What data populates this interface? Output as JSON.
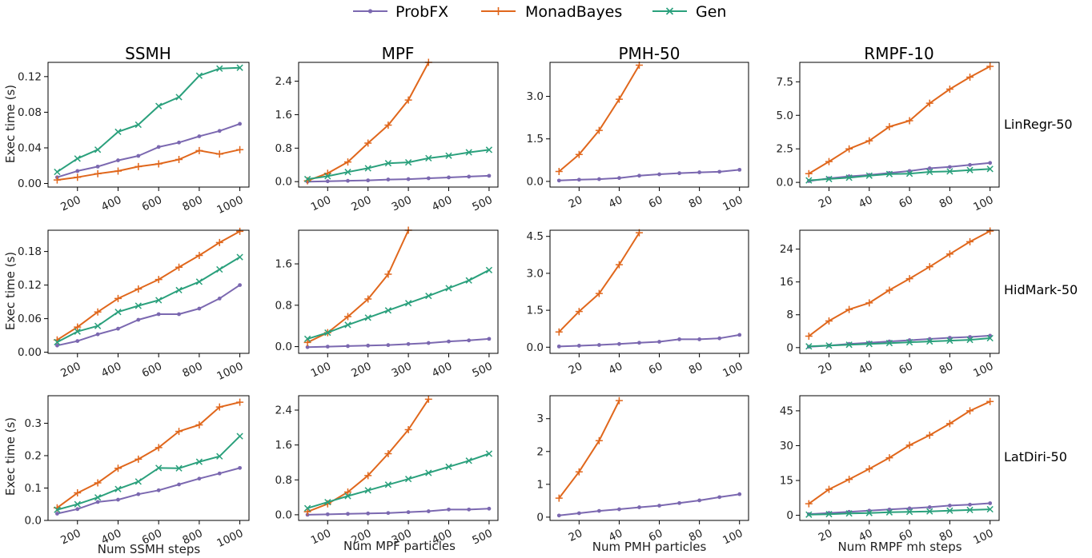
{
  "legend": [
    {
      "name": "ProbFX",
      "color": "#7b68b0",
      "marker": "dot"
    },
    {
      "name": "MonadBayes",
      "color": "#e0671c",
      "marker": "plus"
    },
    {
      "name": "Gen",
      "color": "#2aa07c",
      "marker": "x"
    }
  ],
  "col_titles": [
    "SSMH",
    "MPF",
    "PMH-50",
    "RMPF-10"
  ],
  "row_titles": [
    "LinRegr-50",
    "HidMark-50",
    "LatDiri-50"
  ],
  "xlabels": [
    "Num SSMH steps",
    "Num MPF particles",
    "Num PMH particles",
    "Num RMPF mh steps"
  ],
  "ylabel": "Exec time (s)",
  "chart_data": [
    {
      "type": "line",
      "row": 0,
      "col": 0,
      "x": [
        100,
        200,
        300,
        400,
        500,
        600,
        700,
        800,
        900,
        1000
      ],
      "xticks": [
        200,
        400,
        600,
        800,
        1000
      ],
      "xticklabels": [
        "200",
        "400",
        "600",
        "800",
        "1000"
      ],
      "xlim": [
        55,
        1045
      ],
      "yticks": [
        0,
        0.04,
        0.08,
        0.12
      ],
      "yticklabels": [
        "0.00",
        "0.04",
        "0.08",
        "0.12"
      ],
      "ylim": [
        -0.004,
        0.136
      ],
      "series": [
        {
          "name": "ProbFX",
          "values": [
            0.007,
            0.014,
            0.019,
            0.026,
            0.031,
            0.041,
            0.046,
            0.053,
            0.059,
            0.067
          ]
        },
        {
          "name": "MonadBayes",
          "values": [
            0.004,
            0.007,
            0.011,
            0.014,
            0.019,
            0.022,
            0.027,
            0.037,
            0.033,
            0.038
          ]
        },
        {
          "name": "Gen",
          "values": [
            0.013,
            0.028,
            0.038,
            0.058,
            0.066,
            0.087,
            0.097,
            0.121,
            0.129,
            0.13
          ]
        }
      ]
    },
    {
      "type": "line",
      "row": 0,
      "col": 1,
      "x": [
        50,
        100,
        150,
        200,
        250,
        300,
        350,
        400,
        450,
        500
      ],
      "xticks": [
        100,
        200,
        300,
        400,
        500
      ],
      "xticklabels": [
        "100",
        "200",
        "300",
        "400",
        "500"
      ],
      "xlim": [
        28,
        522
      ],
      "yticks": [
        0,
        0.8,
        1.6,
        2.4
      ],
      "yticklabels": [
        "0.0",
        "0.8",
        "1.6",
        "2.4"
      ],
      "ylim": [
        -0.13,
        2.85
      ],
      "series": [
        {
          "name": "ProbFX",
          "values": [
            0.0,
            0.01,
            0.02,
            0.03,
            0.05,
            0.06,
            0.08,
            0.1,
            0.12,
            0.14
          ]
        },
        {
          "name": "MonadBayes",
          "values": [
            0.02,
            0.2,
            0.47,
            0.92,
            1.35,
            1.95,
            2.85,
            null,
            null,
            null
          ]
        },
        {
          "name": "Gen",
          "values": [
            0.06,
            0.13,
            0.23,
            0.32,
            0.44,
            0.46,
            0.56,
            0.62,
            0.7,
            0.76
          ]
        }
      ]
    },
    {
      "type": "line",
      "row": 0,
      "col": 2,
      "x": [
        10,
        20,
        30,
        40,
        50,
        60,
        70,
        80,
        90,
        100
      ],
      "xticks": [
        20,
        40,
        60,
        80,
        100
      ],
      "xticklabels": [
        "20",
        "40",
        "60",
        "80",
        "100"
      ],
      "xlim": [
        5.5,
        104.5
      ],
      "yticks": [
        0,
        1.5,
        3.0
      ],
      "yticklabels": [
        "0.0",
        "1.5",
        "3.0"
      ],
      "ylim": [
        -0.2,
        4.2
      ],
      "series": [
        {
          "name": "ProbFX",
          "values": [
            0.03,
            0.06,
            0.08,
            0.12,
            0.2,
            0.25,
            0.29,
            0.32,
            0.34,
            0.41
          ]
        },
        {
          "name": "MonadBayes",
          "values": [
            0.35,
            0.95,
            1.8,
            2.9,
            4.1,
            null,
            null,
            null,
            null,
            null
          ]
        }
      ]
    },
    {
      "type": "line",
      "row": 0,
      "col": 3,
      "x": [
        10,
        20,
        30,
        40,
        50,
        60,
        70,
        80,
        90,
        100
      ],
      "xticks": [
        20,
        40,
        60,
        80,
        100
      ],
      "xticklabels": [
        "20",
        "40",
        "60",
        "80",
        "100"
      ],
      "xlim": [
        5.5,
        104.5
      ],
      "yticks": [
        0,
        2.5,
        5.0,
        7.5
      ],
      "yticklabels": [
        "0.0",
        "2.5",
        "5.0",
        "7.5"
      ],
      "ylim": [
        -0.35,
        8.95
      ],
      "series": [
        {
          "name": "ProbFX",
          "values": [
            0.1,
            0.3,
            0.45,
            0.55,
            0.7,
            0.85,
            1.05,
            1.15,
            1.3,
            1.45
          ]
        },
        {
          "name": "MonadBayes",
          "values": [
            0.65,
            1.55,
            2.5,
            3.1,
            4.15,
            4.6,
            5.9,
            6.95,
            7.85,
            8.65
          ]
        },
        {
          "name": "Gen",
          "values": [
            0.15,
            0.25,
            0.35,
            0.5,
            0.62,
            0.65,
            0.78,
            0.82,
            0.92,
            1.0
          ]
        }
      ]
    },
    {
      "type": "line",
      "row": 1,
      "col": 0,
      "x": [
        100,
        200,
        300,
        400,
        500,
        600,
        700,
        800,
        900,
        1000
      ],
      "xticks": [
        200,
        400,
        600,
        800,
        1000
      ],
      "xticklabels": [
        "200",
        "400",
        "600",
        "800",
        "1000"
      ],
      "xlim": [
        55,
        1045
      ],
      "yticks": [
        0,
        0.06,
        0.12,
        0.18
      ],
      "yticklabels": [
        "0.00",
        "0.06",
        "0.12",
        "0.18"
      ],
      "ylim": [
        -0.002,
        0.218
      ],
      "series": [
        {
          "name": "ProbFX",
          "values": [
            0.012,
            0.02,
            0.032,
            0.042,
            0.058,
            0.068,
            0.068,
            0.078,
            0.096,
            0.12
          ]
        },
        {
          "name": "MonadBayes",
          "values": [
            0.022,
            0.045,
            0.072,
            0.096,
            0.113,
            0.13,
            0.152,
            0.173,
            0.196,
            0.216
          ]
        },
        {
          "name": "Gen",
          "values": [
            0.018,
            0.037,
            0.047,
            0.072,
            0.083,
            0.093,
            0.111,
            0.126,
            0.148,
            0.17
          ]
        }
      ]
    },
    {
      "type": "line",
      "row": 1,
      "col": 1,
      "x": [
        50,
        100,
        150,
        200,
        250,
        300,
        350,
        400,
        450,
        500
      ],
      "xticks": [
        100,
        200,
        300,
        400,
        500
      ],
      "xticklabels": [
        "100",
        "200",
        "300",
        "400",
        "500"
      ],
      "xlim": [
        28,
        522
      ],
      "yticks": [
        0,
        0.8,
        1.6
      ],
      "yticklabels": [
        "0.0",
        "0.8",
        "1.6"
      ],
      "ylim": [
        -0.13,
        2.25
      ],
      "series": [
        {
          "name": "ProbFX",
          "values": [
            -0.01,
            0.0,
            0.01,
            0.02,
            0.03,
            0.05,
            0.07,
            0.1,
            0.12,
            0.15
          ]
        },
        {
          "name": "MonadBayes",
          "values": [
            0.08,
            0.27,
            0.58,
            0.92,
            1.4,
            2.25,
            null,
            null,
            null,
            null
          ]
        },
        {
          "name": "Gen",
          "values": [
            0.15,
            0.27,
            0.42,
            0.56,
            0.7,
            0.84,
            0.98,
            1.13,
            1.28,
            1.48
          ]
        }
      ]
    },
    {
      "type": "line",
      "row": 1,
      "col": 2,
      "x": [
        10,
        20,
        30,
        40,
        50,
        60,
        70,
        80,
        90,
        100
      ],
      "xticks": [
        20,
        40,
        60,
        80,
        100
      ],
      "xticklabels": [
        "20",
        "40",
        "60",
        "80",
        "100"
      ],
      "xlim": [
        5.5,
        104.5
      ],
      "yticks": [
        0,
        1.5,
        3.0,
        4.5
      ],
      "yticklabels": [
        "0.0",
        "1.5",
        "3.0",
        "4.5"
      ],
      "ylim": [
        -0.25,
        4.75
      ],
      "series": [
        {
          "name": "ProbFX",
          "values": [
            0.03,
            0.06,
            0.09,
            0.13,
            0.18,
            0.22,
            0.32,
            0.32,
            0.36,
            0.5
          ]
        },
        {
          "name": "MonadBayes",
          "values": [
            0.62,
            1.45,
            2.18,
            3.35,
            4.65,
            null,
            null,
            null,
            null,
            null
          ]
        }
      ]
    },
    {
      "type": "line",
      "row": 1,
      "col": 3,
      "x": [
        10,
        20,
        30,
        40,
        50,
        60,
        70,
        80,
        90,
        100
      ],
      "xticks": [
        20,
        40,
        60,
        80,
        100
      ],
      "xticklabels": [
        "20",
        "40",
        "60",
        "80",
        "100"
      ],
      "xlim": [
        5.5,
        104.5
      ],
      "yticks": [
        0,
        8,
        16,
        24
      ],
      "yticklabels": [
        "0",
        "8",
        "16",
        "24"
      ],
      "ylim": [
        -1.4,
        28.6
      ],
      "series": [
        {
          "name": "ProbFX",
          "values": [
            0.2,
            0.5,
            0.9,
            1.2,
            1.5,
            1.8,
            2.1,
            2.4,
            2.6,
            2.9
          ]
        },
        {
          "name": "MonadBayes",
          "values": [
            2.8,
            6.5,
            9.3,
            10.9,
            14.0,
            16.8,
            19.7,
            22.8,
            25.8,
            28.4
          ]
        },
        {
          "name": "Gen",
          "values": [
            0.3,
            0.5,
            0.7,
            0.9,
            1.1,
            1.3,
            1.5,
            1.7,
            1.9,
            2.3
          ]
        }
      ]
    },
    {
      "type": "line",
      "row": 2,
      "col": 0,
      "x": [
        100,
        200,
        300,
        400,
        500,
        600,
        700,
        800,
        900,
        1000
      ],
      "xticks": [
        200,
        400,
        600,
        800,
        1000
      ],
      "xticklabels": [
        "200",
        "400",
        "600",
        "800",
        "1000"
      ],
      "xlim": [
        55,
        1045
      ],
      "yticks": [
        0,
        0.1,
        0.2,
        0.3
      ],
      "yticklabels": [
        "0.0",
        "0.1",
        "0.2",
        "0.3"
      ],
      "ylim": [
        0.0,
        0.385
      ],
      "series": [
        {
          "name": "ProbFX",
          "values": [
            0.021,
            0.035,
            0.057,
            0.064,
            0.081,
            0.093,
            0.111,
            0.129,
            0.145,
            0.162
          ]
        },
        {
          "name": "MonadBayes",
          "values": [
            0.039,
            0.085,
            0.116,
            0.161,
            0.189,
            0.225,
            0.275,
            0.295,
            0.35,
            0.365
          ]
        },
        {
          "name": "Gen",
          "values": [
            0.033,
            0.05,
            0.071,
            0.097,
            0.12,
            0.162,
            0.161,
            0.181,
            0.198,
            0.26
          ]
        }
      ]
    },
    {
      "type": "line",
      "row": 2,
      "col": 1,
      "x": [
        50,
        100,
        150,
        200,
        250,
        300,
        350,
        400,
        450,
        500
      ],
      "xticks": [
        100,
        200,
        300,
        400,
        500
      ],
      "xticklabels": [
        "100",
        "200",
        "300",
        "400",
        "500"
      ],
      "xlim": [
        28,
        522
      ],
      "yticks": [
        0,
        0.8,
        1.6,
        2.4
      ],
      "yticklabels": [
        "0.0",
        "0.8",
        "1.6",
        "2.4"
      ],
      "ylim": [
        -0.13,
        2.73
      ],
      "series": [
        {
          "name": "ProbFX",
          "values": [
            0.0,
            0.01,
            0.02,
            0.03,
            0.04,
            0.06,
            0.08,
            0.12,
            0.12,
            0.14
          ]
        },
        {
          "name": "MonadBayes",
          "values": [
            0.07,
            0.25,
            0.52,
            0.9,
            1.4,
            1.95,
            2.65,
            null,
            null,
            null
          ]
        },
        {
          "name": "Gen",
          "values": [
            0.15,
            0.29,
            0.43,
            0.56,
            0.69,
            0.82,
            0.96,
            1.1,
            1.24,
            1.4
          ]
        }
      ]
    },
    {
      "type": "line",
      "row": 2,
      "col": 2,
      "x": [
        10,
        20,
        30,
        40,
        50,
        60,
        70,
        80,
        90,
        100
      ],
      "xticks": [
        20,
        40,
        60,
        80,
        100
      ],
      "xticklabels": [
        "20",
        "40",
        "60",
        "80",
        "100"
      ],
      "xlim": [
        5.5,
        104.5
      ],
      "yticks": [
        0,
        1,
        2,
        3
      ],
      "yticklabels": [
        "0",
        "1",
        "2",
        "3"
      ],
      "ylim": [
        -0.1,
        3.7
      ],
      "series": [
        {
          "name": "ProbFX",
          "values": [
            0.05,
            0.12,
            0.19,
            0.24,
            0.3,
            0.35,
            0.43,
            0.51,
            0.61,
            0.7
          ]
        },
        {
          "name": "MonadBayes",
          "values": [
            0.58,
            1.38,
            2.33,
            3.55,
            null,
            null,
            null,
            null,
            null,
            null
          ]
        }
      ]
    },
    {
      "type": "line",
      "row": 2,
      "col": 3,
      "x": [
        10,
        20,
        30,
        40,
        50,
        60,
        70,
        80,
        90,
        100
      ],
      "xticks": [
        20,
        40,
        60,
        80,
        100
      ],
      "xticklabels": [
        "20",
        "40",
        "60",
        "80",
        "100"
      ],
      "xlim": [
        5.5,
        104.5
      ],
      "yticks": [
        0,
        15,
        30,
        45
      ],
      "yticklabels": [
        "0",
        "15",
        "30",
        "45"
      ],
      "ylim": [
        -2.2,
        51.5
      ],
      "series": [
        {
          "name": "ProbFX",
          "values": [
            0.5,
            1.0,
            1.5,
            2.0,
            2.5,
            3.0,
            3.5,
            4.2,
            4.6,
            5.2
          ]
        },
        {
          "name": "MonadBayes",
          "values": [
            5.0,
            11.2,
            15.5,
            20.0,
            24.8,
            30.2,
            34.5,
            39.5,
            45.0,
            49.0
          ]
        },
        {
          "name": "Gen",
          "values": [
            0.3,
            0.5,
            0.8,
            1.0,
            1.3,
            1.5,
            1.7,
            2.0,
            2.3,
            2.6
          ]
        }
      ]
    }
  ]
}
